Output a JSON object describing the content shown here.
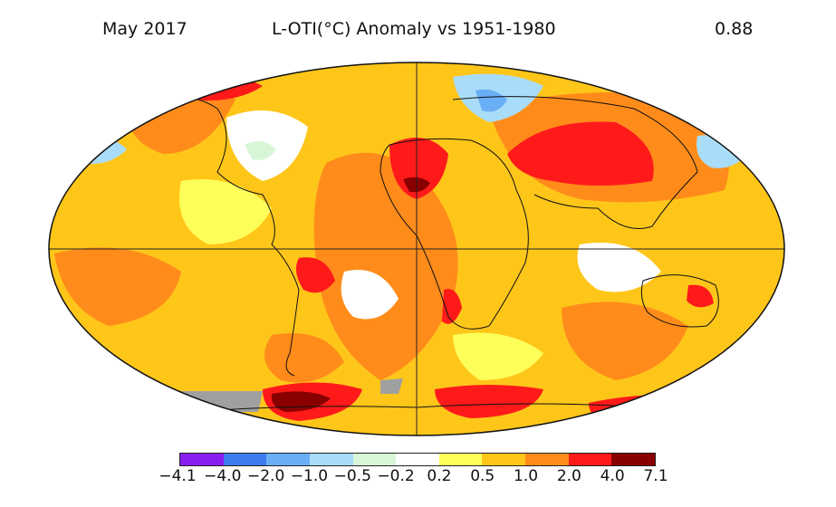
{
  "header": {
    "date": "May 2017",
    "title": "L-OTI(°C) Anomaly vs 1951-1980",
    "global_mean": "0.88"
  },
  "legend": {
    "ticks": [
      "−4.1",
      "−4.0",
      "−2.0",
      "−1.0",
      "−0.5",
      "−0.2",
      "0.2",
      "0.5",
      "1.0",
      "2.0",
      "4.0",
      "7.1"
    ],
    "colors": [
      "#8a1ef0",
      "#3d7cf0",
      "#6aaff5",
      "#a9dcf8",
      "#d8f5d8",
      "#ffffff",
      "#ffff5a",
      "#ffc61a",
      "#ff8c1a",
      "#ff1a1a",
      "#8a0000"
    ]
  },
  "map": {
    "projection": "robinson-like",
    "no_data_color": "#a0a0a0",
    "background_color": "#ffc61a"
  }
}
